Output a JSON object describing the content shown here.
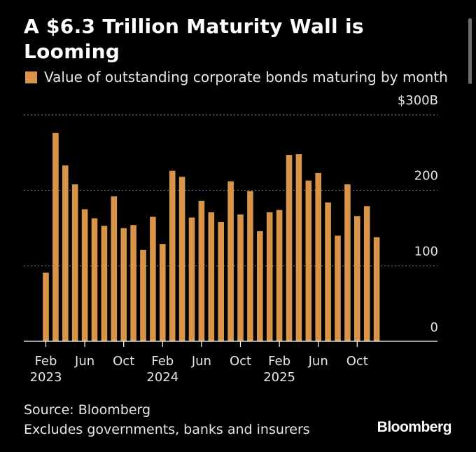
{
  "header": {
    "title": "A $6.3 Trillion Maturity Wall is Looming"
  },
  "legend": {
    "label": "Value of outstanding corporate bonds maturing by month"
  },
  "footer": {
    "source": "Source: Bloomberg",
    "note": "Excludes governments, banks and insurers",
    "brand": "Bloomberg"
  },
  "colors": {
    "bar": "#d89448",
    "background": "#000000",
    "grid": "#8a8a8a",
    "text": "#e6e6e6"
  },
  "chart_data": {
    "type": "bar",
    "title": "A $6.3 Trillion Maturity Wall is Looming",
    "series": [
      {
        "name": "Value of outstanding corporate bonds maturing by month",
        "values": [
          91,
          276,
          233,
          208,
          175,
          163,
          153,
          192,
          150,
          154,
          121,
          165,
          129,
          226,
          218,
          164,
          186,
          171,
          158,
          212,
          168,
          199,
          146,
          171,
          174,
          247,
          248,
          213,
          223,
          184,
          140,
          208,
          166,
          179,
          138
        ]
      }
    ],
    "categories": [
      "2023-02",
      "2023-03",
      "2023-04",
      "2023-05",
      "2023-06",
      "2023-07",
      "2023-08",
      "2023-09",
      "2023-10",
      "2023-11",
      "2023-12",
      "2024-01",
      "2024-02",
      "2024-03",
      "2024-04",
      "2024-05",
      "2024-06",
      "2024-07",
      "2024-08",
      "2024-09",
      "2024-10",
      "2024-11",
      "2024-12",
      "2025-01",
      "2025-02",
      "2025-03",
      "2025-04",
      "2025-05",
      "2025-06",
      "2025-07",
      "2025-08",
      "2025-09",
      "2025-10",
      "2025-11",
      "2025-12"
    ],
    "x_ticks": [
      {
        "index": 0,
        "label": "Feb",
        "year": "2023"
      },
      {
        "index": 4,
        "label": "Jun",
        "year": ""
      },
      {
        "index": 8,
        "label": "Oct",
        "year": ""
      },
      {
        "index": 12,
        "label": "Feb",
        "year": "2024"
      },
      {
        "index": 16,
        "label": "Jun",
        "year": ""
      },
      {
        "index": 20,
        "label": "Oct",
        "year": ""
      },
      {
        "index": 24,
        "label": "Feb",
        "year": "2025"
      },
      {
        "index": 28,
        "label": "Jun",
        "year": ""
      },
      {
        "index": 32,
        "label": "Oct",
        "year": ""
      }
    ],
    "y_ticks": [
      {
        "value": 0,
        "label": "0"
      },
      {
        "value": 100,
        "label": "100"
      },
      {
        "value": 200,
        "label": "200"
      },
      {
        "value": 300,
        "label": "$300B"
      }
    ],
    "ylim": [
      0,
      300
    ],
    "unit": "$B",
    "grid": true,
    "gridlines": "dotted horizontal",
    "y_axis_side": "right"
  }
}
